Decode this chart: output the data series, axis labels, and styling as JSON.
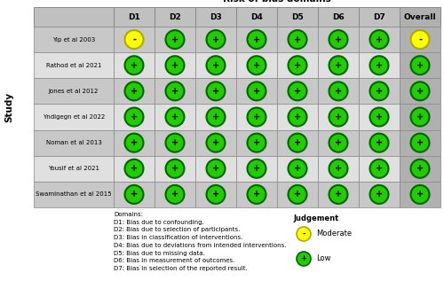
{
  "title": "Risk of bias domains",
  "ylabel": "Study",
  "studies": [
    "Yip et al 2003",
    "Rathod et al 2021",
    "Jones et al 2012",
    "Yndigegn et al 2022",
    "Noman et al 2013",
    "Yousif et al 2021",
    "Swaminathan et al 2015"
  ],
  "domains": [
    "D1",
    "D2",
    "D3",
    "D4",
    "D5",
    "D6",
    "D7",
    "Overall"
  ],
  "judgements": [
    [
      "M",
      "L",
      "L",
      "L",
      "L",
      "L",
      "L",
      "M"
    ],
    [
      "L",
      "L",
      "L",
      "L",
      "L",
      "L",
      "L",
      "L"
    ],
    [
      "L",
      "L",
      "L",
      "L",
      "L",
      "L",
      "L",
      "L"
    ],
    [
      "L",
      "L",
      "L",
      "L",
      "L",
      "L",
      "L",
      "L"
    ],
    [
      "L",
      "L",
      "L",
      "L",
      "L",
      "L",
      "L",
      "L"
    ],
    [
      "L",
      "L",
      "L",
      "L",
      "L",
      "L",
      "L",
      "L"
    ],
    [
      "L",
      "L",
      "L",
      "L",
      "L",
      "L",
      "L",
      "L"
    ]
  ],
  "color_moderate": "#FFFF00",
  "color_low": "#22CC00",
  "color_border_moderate": "#AAAA00",
  "color_border_low": "#006600",
  "color_header_bg": "#C0C0C0",
  "color_row_odd": "#C8C8C8",
  "color_row_even": "#E0E0E0",
  "color_overall_bg": "#B0B0B0",
  "color_grid": "#888888",
  "domain_notes": [
    "Domains:",
    "D1: Bias due to confounding.",
    "D2: Bias due to selection of participants.",
    "D3: Bias in classification of interventions.",
    "D4: Bias due to deviations from intended interventions.",
    "D5: Bias due to missing data.",
    "D6: Bias in measurement of outcomes.",
    "D7: Bias in selection of the reported result."
  ],
  "legend_title": "Judgement",
  "legend_items": [
    {
      "label": "Moderate",
      "color": "#FFFF00",
      "border": "#AAAA00",
      "symbol": "-"
    },
    {
      "label": "Low",
      "color": "#22CC00",
      "border": "#006600",
      "symbol": "+"
    }
  ]
}
